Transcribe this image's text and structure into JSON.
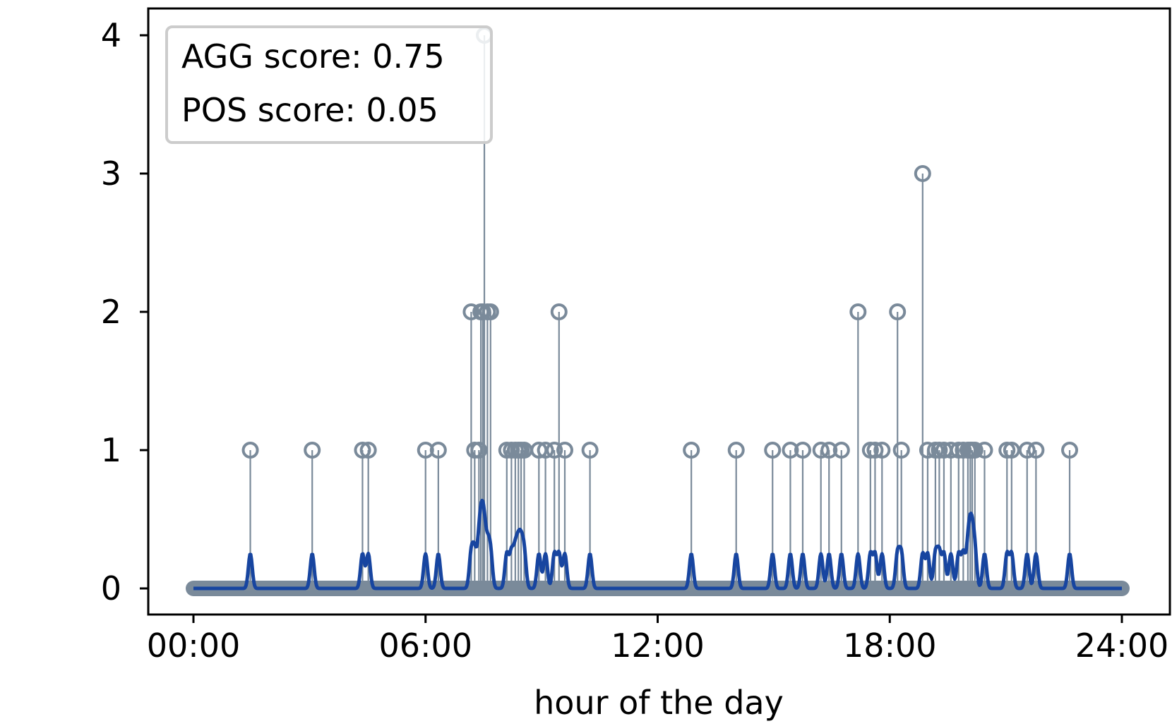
{
  "chart_data": {
    "type": "line",
    "title": "",
    "xlabel": "hour of the day",
    "ylabel": "",
    "xlim": [
      0,
      24
    ],
    "ylim": [
      -0.2,
      4.2
    ],
    "x_ticks": [
      {
        "value": 0,
        "label": "00:00"
      },
      {
        "value": 6,
        "label": "06:00"
      },
      {
        "value": 12,
        "label": "12:00"
      },
      {
        "value": 18,
        "label": "18:00"
      },
      {
        "value": 24,
        "label": "24:00"
      }
    ],
    "y_ticks": [
      {
        "value": 0,
        "label": "0"
      },
      {
        "value": 1,
        "label": "1"
      },
      {
        "value": 2,
        "label": "2"
      },
      {
        "value": 3,
        "label": "3"
      },
      {
        "value": 4,
        "label": "4"
      }
    ],
    "grid": false,
    "legend": {
      "placement": "top-left",
      "entries": [
        "AGG score: 0.75",
        "POS score: 0.05"
      ]
    },
    "events": {
      "x_hours": [
        1.47,
        3.07,
        4.37,
        4.52,
        6.0,
        6.33,
        7.18,
        7.27,
        7.38,
        7.43,
        7.48,
        7.52,
        7.6,
        7.68,
        8.1,
        8.22,
        8.32,
        8.4,
        8.47,
        8.55,
        8.93,
        9.1,
        9.33,
        9.45,
        9.6,
        10.25,
        12.87,
        14.03,
        14.97,
        15.43,
        15.75,
        16.22,
        16.43,
        16.75,
        17.18,
        17.5,
        17.62,
        17.8,
        18.2,
        18.3,
        18.85,
        18.98,
        19.18,
        19.28,
        19.4,
        19.58,
        19.78,
        19.9,
        20.02,
        20.08,
        20.13,
        20.2,
        20.45,
        21.03,
        21.15,
        21.55,
        21.78,
        22.65
      ],
      "counts": [
        1,
        1,
        1,
        1,
        1,
        1,
        2,
        1,
        1,
        2,
        2,
        4,
        2,
        2,
        1,
        1,
        1,
        1,
        1,
        1,
        1,
        1,
        1,
        2,
        1,
        1,
        1,
        1,
        1,
        1,
        1,
        1,
        1,
        1,
        2,
        1,
        1,
        1,
        2,
        1,
        3,
        1,
        1,
        1,
        1,
        1,
        1,
        1,
        1,
        1,
        1,
        1,
        1,
        1,
        1,
        1,
        1,
        1
      ],
      "baseline": 0,
      "color": "#7a8a9a"
    },
    "smoothed_series": {
      "kernel_bandwidth_hours": 0.05,
      "amplitude": 0.25,
      "color": "#1745a0"
    }
  }
}
